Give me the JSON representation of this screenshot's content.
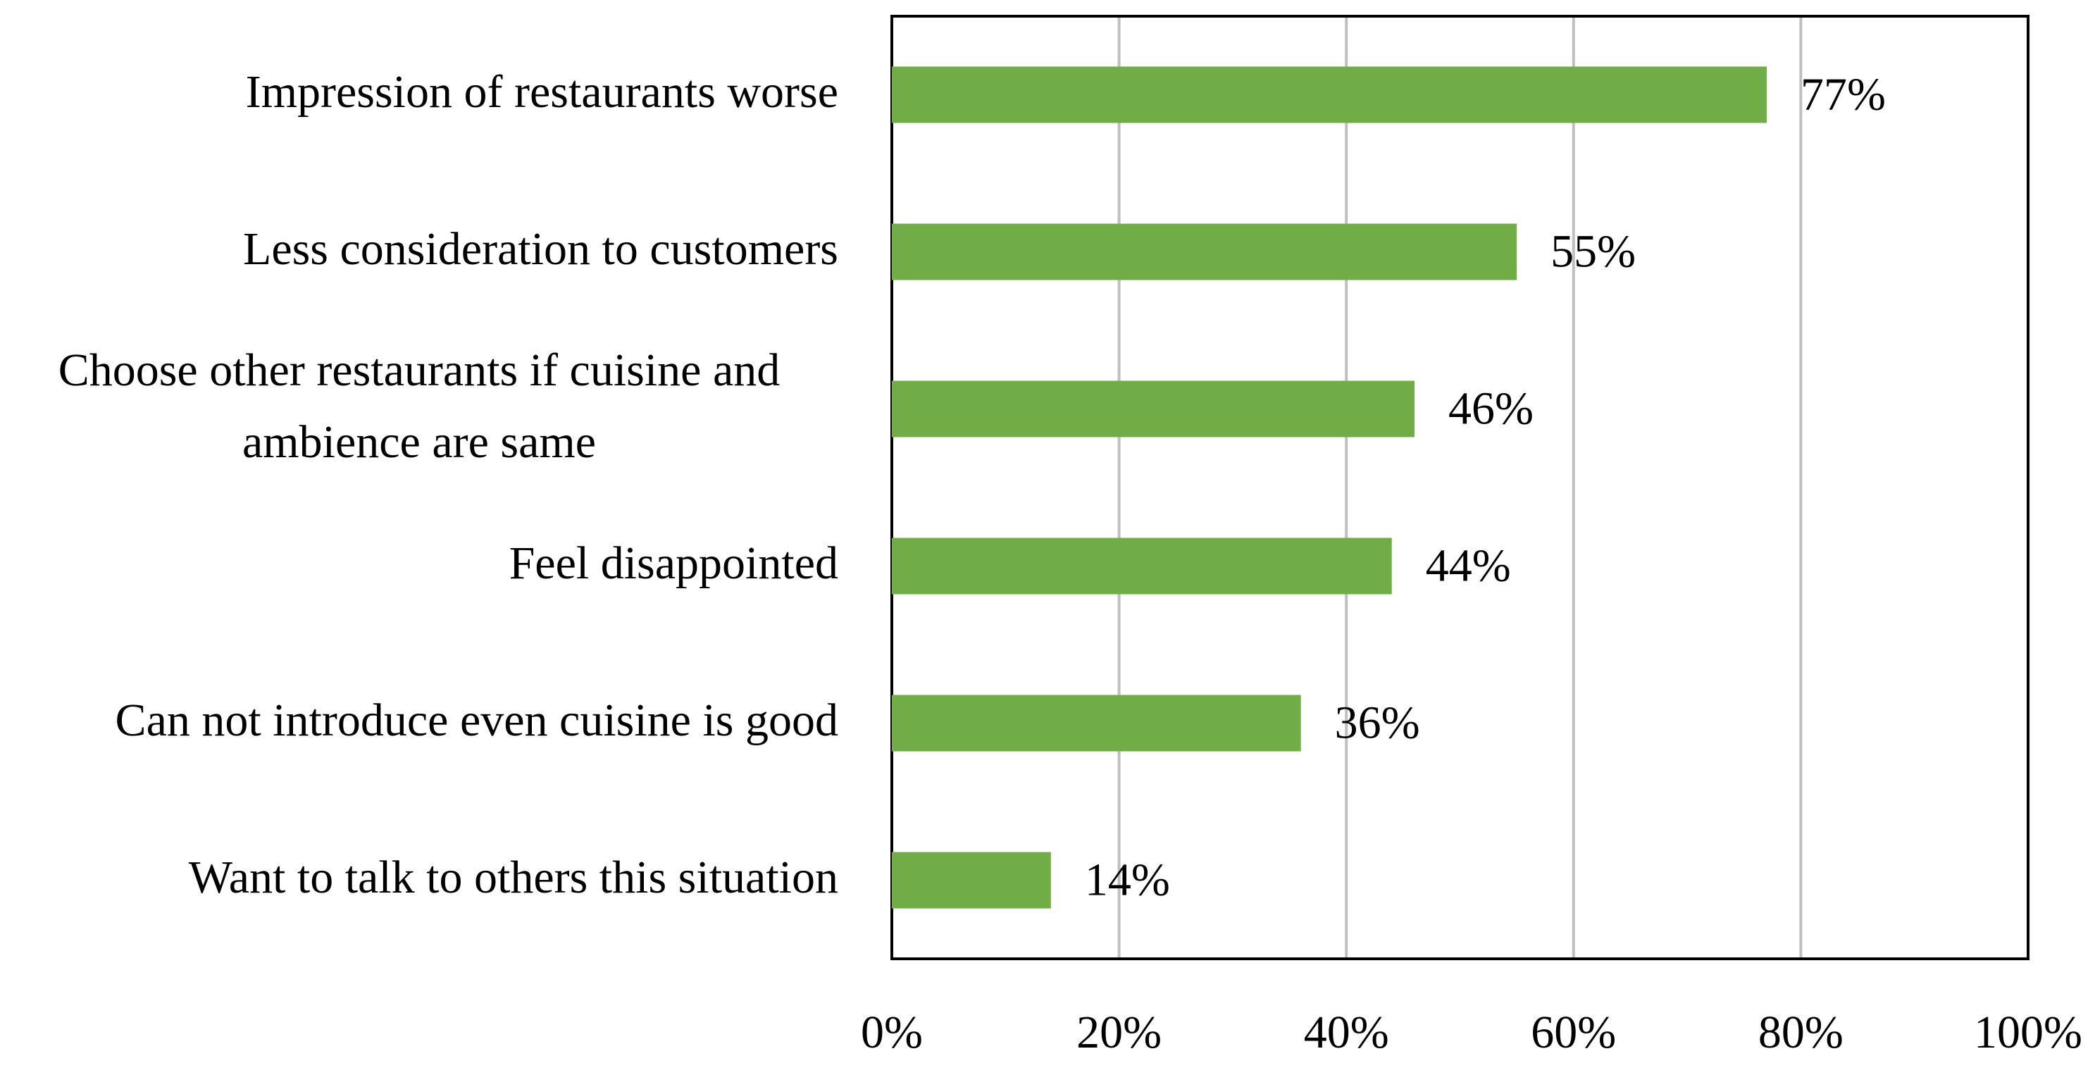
{
  "chart_data": {
    "type": "bar",
    "orientation": "horizontal",
    "categories": [
      "Impression of restaurants worse",
      "Less consideration to customers",
      "Choose other restaurants if cuisine and ambience are same",
      "Feel disappointed",
      "Can not introduce even cuisine is good",
      "Want to talk to others this situation"
    ],
    "values": [
      77,
      55,
      46,
      44,
      36,
      14
    ],
    "value_labels": [
      "77%",
      "55%",
      "46%",
      "44%",
      "36%",
      "14%"
    ],
    "color": "#70ad47",
    "xlim": [
      0,
      100
    ],
    "xticks": [
      {
        "value": 0,
        "label": "0%"
      },
      {
        "value": 20,
        "label": "20%"
      },
      {
        "value": 40,
        "label": "40%"
      },
      {
        "value": 60,
        "label": "60%"
      },
      {
        "value": 80,
        "label": "80%"
      },
      {
        "value": 100,
        "label": "100%"
      }
    ],
    "grid": true
  }
}
